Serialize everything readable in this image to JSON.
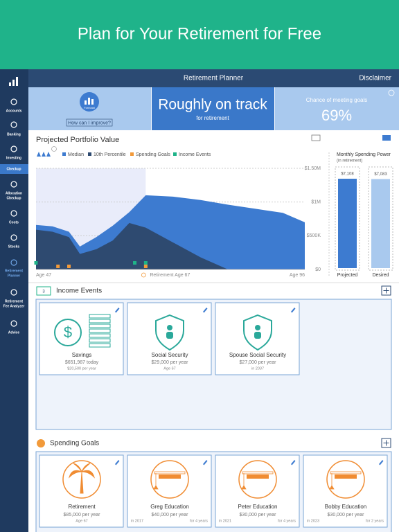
{
  "banner": {
    "title": "Plan for Your Retirement for Free"
  },
  "header": {
    "title": "Retirement Planner",
    "disclaimer": "Disclaimer"
  },
  "sidebar": {
    "items": [
      [
        "Accounts"
      ],
      [
        "Banking"
      ],
      [
        "Investing"
      ],
      [
        "Checkup"
      ],
      [
        "Allocation",
        "Checkup"
      ],
      [
        "Costs"
      ],
      [
        "Stocks"
      ],
      [
        "Retirement",
        "Planner"
      ],
      [
        "Retirement",
        "Fee Analyzer"
      ],
      [
        "Advice"
      ]
    ]
  },
  "summary": {
    "forecast_label": "Forecast",
    "improve_link": "How can I improve?",
    "status": "Roughly on track",
    "status_sub": "for retirement",
    "chance_label": "Chance of meeting goals",
    "chance": {
      "value": 69,
      "label": "69%"
    }
  },
  "portfolio_chart": {
    "type": "area",
    "title": "Projected Portfolio Value",
    "x": [
      47,
      50,
      53,
      55,
      58,
      61,
      64,
      67,
      72,
      77,
      82,
      87,
      92,
      96
    ],
    "xlim": [
      47,
      96
    ],
    "ylim": [
      0,
      1500000
    ],
    "yticks": [
      {
        "value": 0,
        "label": "$0"
      },
      {
        "value": 500000,
        "label": "$500K"
      },
      {
        "value": 1000000,
        "label": "$1M"
      },
      {
        "value": 1500000,
        "label": "$1.50M"
      }
    ],
    "series": [
      {
        "name": "Median",
        "color": "#3d7bd0",
        "values": [
          660000,
          640000,
          560000,
          340000,
          480000,
          650000,
          850000,
          1100000,
          1080000,
          1030000,
          960000,
          900000,
          840000,
          700000
        ]
      },
      {
        "name": "10th Percentile",
        "color": "#2e4a70",
        "values": [
          590000,
          560000,
          480000,
          230000,
          300000,
          430000,
          690000,
          620000,
          400000,
          180000,
          0,
          0,
          0,
          0
        ]
      }
    ],
    "markers": [
      {
        "name": "Spending Goals",
        "color": "#f29a3a",
        "ages": [
          51,
          53,
          67
        ]
      },
      {
        "name": "Income Events",
        "color": "#1fb389",
        "ages": [
          47,
          65,
          67
        ]
      }
    ],
    "retirement_age": 67,
    "x_labels": {
      "start": "Age 47",
      "retirement": "Retirement Age 67",
      "end": "Age 96"
    }
  },
  "spending_power": {
    "title": "Monthly Spending Power",
    "subtitle": "(in retirement)",
    "bars": [
      {
        "name": "Projected",
        "value": 7108,
        "label": "$7,108",
        "color": "#3d7bd0"
      },
      {
        "name": "Desired",
        "value": 7083,
        "label": "$7,083",
        "color": "#a9c9ee"
      }
    ]
  },
  "income_events": {
    "title": "Income Events",
    "count": 3,
    "cards": [
      {
        "title": "Savings",
        "line1": "$651,987 today",
        "line2": "$20,500 per year"
      },
      {
        "title": "Social Security",
        "line1": "$29,000 per year",
        "line2": "Age 67"
      },
      {
        "title": "Spouse Social Security",
        "line1": "$27,000 per year",
        "line2": "in 2037"
      }
    ]
  },
  "spending_goals": {
    "title": "Spending Goals",
    "cards": [
      {
        "title": "Retirement",
        "line1": "$85,000 per year",
        "line2": "Age 67"
      },
      {
        "title": "Greg Education",
        "line1": "$40,000 per year",
        "left": "in 2017",
        "right": "for 4 years"
      },
      {
        "title": "Peter Education",
        "line1": "$30,000 per year",
        "left": "in 2021",
        "right": "for 4 years"
      },
      {
        "title": "Bobby Education",
        "line1": "$30,000 per year",
        "left": "in 2023",
        "right": "for 2 years"
      }
    ]
  }
}
